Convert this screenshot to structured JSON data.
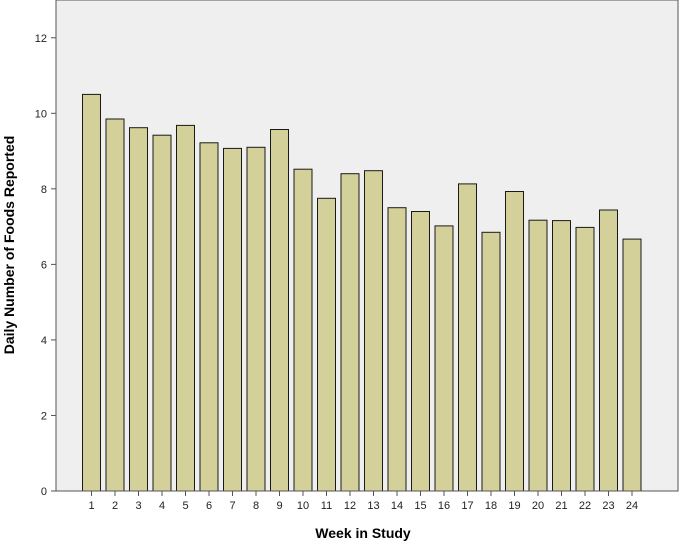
{
  "chart_data": {
    "type": "bar",
    "title": "",
    "xlabel": "Week in Study",
    "ylabel": "Daily Number of Foods Reported",
    "categories": [
      "1",
      "2",
      "3",
      "4",
      "5",
      "6",
      "7",
      "8",
      "9",
      "10",
      "11",
      "12",
      "13",
      "14",
      "15",
      "16",
      "17",
      "18",
      "19",
      "20",
      "21",
      "22",
      "23",
      "24"
    ],
    "values": [
      10.5,
      9.85,
      9.62,
      9.42,
      9.68,
      9.22,
      9.07,
      9.1,
      9.57,
      8.52,
      7.75,
      8.4,
      8.48,
      7.5,
      7.4,
      7.02,
      8.13,
      6.85,
      7.93,
      7.17,
      7.16,
      6.98,
      7.44,
      6.67
    ],
    "ylim": [
      0,
      13
    ],
    "yticks": [
      0,
      2,
      4,
      6,
      8,
      10,
      12
    ],
    "grid": false,
    "colors": {
      "bar_fill": "#d4d09a",
      "bar_stroke": "#1a1a1a",
      "plot_bg": "#efefef"
    }
  }
}
